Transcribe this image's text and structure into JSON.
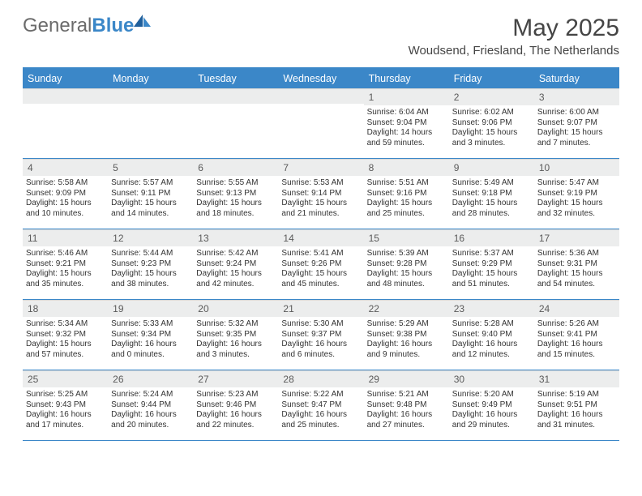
{
  "logo": {
    "word1": "General",
    "word2": "Blue"
  },
  "title": "May 2025",
  "subtitle": "Woudsend, Friesland, The Netherlands",
  "colors": {
    "accent": "#3b87c8",
    "header_bg": "#3b87c8",
    "daynum_bg": "#eceded",
    "text": "#333333",
    "logo_gray": "#6b6b6b"
  },
  "day_labels": [
    "Sunday",
    "Monday",
    "Tuesday",
    "Wednesday",
    "Thursday",
    "Friday",
    "Saturday"
  ],
  "weeks": [
    [
      {
        "n": "",
        "rise": "",
        "set": "",
        "dl1": "",
        "dl2": ""
      },
      {
        "n": "",
        "rise": "",
        "set": "",
        "dl1": "",
        "dl2": ""
      },
      {
        "n": "",
        "rise": "",
        "set": "",
        "dl1": "",
        "dl2": ""
      },
      {
        "n": "",
        "rise": "",
        "set": "",
        "dl1": "",
        "dl2": ""
      },
      {
        "n": "1",
        "rise": "Sunrise: 6:04 AM",
        "set": "Sunset: 9:04 PM",
        "dl1": "Daylight: 14 hours",
        "dl2": "and 59 minutes."
      },
      {
        "n": "2",
        "rise": "Sunrise: 6:02 AM",
        "set": "Sunset: 9:06 PM",
        "dl1": "Daylight: 15 hours",
        "dl2": "and 3 minutes."
      },
      {
        "n": "3",
        "rise": "Sunrise: 6:00 AM",
        "set": "Sunset: 9:07 PM",
        "dl1": "Daylight: 15 hours",
        "dl2": "and 7 minutes."
      }
    ],
    [
      {
        "n": "4",
        "rise": "Sunrise: 5:58 AM",
        "set": "Sunset: 9:09 PM",
        "dl1": "Daylight: 15 hours",
        "dl2": "and 10 minutes."
      },
      {
        "n": "5",
        "rise": "Sunrise: 5:57 AM",
        "set": "Sunset: 9:11 PM",
        "dl1": "Daylight: 15 hours",
        "dl2": "and 14 minutes."
      },
      {
        "n": "6",
        "rise": "Sunrise: 5:55 AM",
        "set": "Sunset: 9:13 PM",
        "dl1": "Daylight: 15 hours",
        "dl2": "and 18 minutes."
      },
      {
        "n": "7",
        "rise": "Sunrise: 5:53 AM",
        "set": "Sunset: 9:14 PM",
        "dl1": "Daylight: 15 hours",
        "dl2": "and 21 minutes."
      },
      {
        "n": "8",
        "rise": "Sunrise: 5:51 AM",
        "set": "Sunset: 9:16 PM",
        "dl1": "Daylight: 15 hours",
        "dl2": "and 25 minutes."
      },
      {
        "n": "9",
        "rise": "Sunrise: 5:49 AM",
        "set": "Sunset: 9:18 PM",
        "dl1": "Daylight: 15 hours",
        "dl2": "and 28 minutes."
      },
      {
        "n": "10",
        "rise": "Sunrise: 5:47 AM",
        "set": "Sunset: 9:19 PM",
        "dl1": "Daylight: 15 hours",
        "dl2": "and 32 minutes."
      }
    ],
    [
      {
        "n": "11",
        "rise": "Sunrise: 5:46 AM",
        "set": "Sunset: 9:21 PM",
        "dl1": "Daylight: 15 hours",
        "dl2": "and 35 minutes."
      },
      {
        "n": "12",
        "rise": "Sunrise: 5:44 AM",
        "set": "Sunset: 9:23 PM",
        "dl1": "Daylight: 15 hours",
        "dl2": "and 38 minutes."
      },
      {
        "n": "13",
        "rise": "Sunrise: 5:42 AM",
        "set": "Sunset: 9:24 PM",
        "dl1": "Daylight: 15 hours",
        "dl2": "and 42 minutes."
      },
      {
        "n": "14",
        "rise": "Sunrise: 5:41 AM",
        "set": "Sunset: 9:26 PM",
        "dl1": "Daylight: 15 hours",
        "dl2": "and 45 minutes."
      },
      {
        "n": "15",
        "rise": "Sunrise: 5:39 AM",
        "set": "Sunset: 9:28 PM",
        "dl1": "Daylight: 15 hours",
        "dl2": "and 48 minutes."
      },
      {
        "n": "16",
        "rise": "Sunrise: 5:37 AM",
        "set": "Sunset: 9:29 PM",
        "dl1": "Daylight: 15 hours",
        "dl2": "and 51 minutes."
      },
      {
        "n": "17",
        "rise": "Sunrise: 5:36 AM",
        "set": "Sunset: 9:31 PM",
        "dl1": "Daylight: 15 hours",
        "dl2": "and 54 minutes."
      }
    ],
    [
      {
        "n": "18",
        "rise": "Sunrise: 5:34 AM",
        "set": "Sunset: 9:32 PM",
        "dl1": "Daylight: 15 hours",
        "dl2": "and 57 minutes."
      },
      {
        "n": "19",
        "rise": "Sunrise: 5:33 AM",
        "set": "Sunset: 9:34 PM",
        "dl1": "Daylight: 16 hours",
        "dl2": "and 0 minutes."
      },
      {
        "n": "20",
        "rise": "Sunrise: 5:32 AM",
        "set": "Sunset: 9:35 PM",
        "dl1": "Daylight: 16 hours",
        "dl2": "and 3 minutes."
      },
      {
        "n": "21",
        "rise": "Sunrise: 5:30 AM",
        "set": "Sunset: 9:37 PM",
        "dl1": "Daylight: 16 hours",
        "dl2": "and 6 minutes."
      },
      {
        "n": "22",
        "rise": "Sunrise: 5:29 AM",
        "set": "Sunset: 9:38 PM",
        "dl1": "Daylight: 16 hours",
        "dl2": "and 9 minutes."
      },
      {
        "n": "23",
        "rise": "Sunrise: 5:28 AM",
        "set": "Sunset: 9:40 PM",
        "dl1": "Daylight: 16 hours",
        "dl2": "and 12 minutes."
      },
      {
        "n": "24",
        "rise": "Sunrise: 5:26 AM",
        "set": "Sunset: 9:41 PM",
        "dl1": "Daylight: 16 hours",
        "dl2": "and 15 minutes."
      }
    ],
    [
      {
        "n": "25",
        "rise": "Sunrise: 5:25 AM",
        "set": "Sunset: 9:43 PM",
        "dl1": "Daylight: 16 hours",
        "dl2": "and 17 minutes."
      },
      {
        "n": "26",
        "rise": "Sunrise: 5:24 AM",
        "set": "Sunset: 9:44 PM",
        "dl1": "Daylight: 16 hours",
        "dl2": "and 20 minutes."
      },
      {
        "n": "27",
        "rise": "Sunrise: 5:23 AM",
        "set": "Sunset: 9:46 PM",
        "dl1": "Daylight: 16 hours",
        "dl2": "and 22 minutes."
      },
      {
        "n": "28",
        "rise": "Sunrise: 5:22 AM",
        "set": "Sunset: 9:47 PM",
        "dl1": "Daylight: 16 hours",
        "dl2": "and 25 minutes."
      },
      {
        "n": "29",
        "rise": "Sunrise: 5:21 AM",
        "set": "Sunset: 9:48 PM",
        "dl1": "Daylight: 16 hours",
        "dl2": "and 27 minutes."
      },
      {
        "n": "30",
        "rise": "Sunrise: 5:20 AM",
        "set": "Sunset: 9:49 PM",
        "dl1": "Daylight: 16 hours",
        "dl2": "and 29 minutes."
      },
      {
        "n": "31",
        "rise": "Sunrise: 5:19 AM",
        "set": "Sunset: 9:51 PM",
        "dl1": "Daylight: 16 hours",
        "dl2": "and 31 minutes."
      }
    ]
  ]
}
